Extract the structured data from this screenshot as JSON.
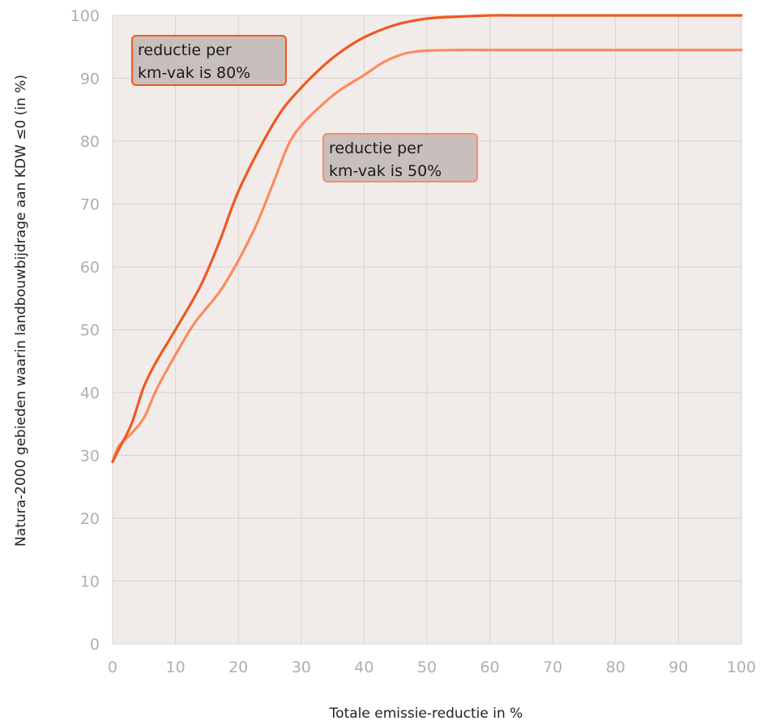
{
  "chart_data": {
    "type": "line",
    "title": "",
    "xlabel": "Totale emissie-reductie in %",
    "ylabel": "Natura-2000 gebieden waarin landbouwbijdrage aan KDW ≤0 (in %)",
    "xlim": [
      0,
      100
    ],
    "ylim": [
      0,
      100
    ],
    "x_ticks": [
      0,
      10,
      20,
      30,
      40,
      50,
      60,
      70,
      80,
      90,
      100
    ],
    "y_ticks": [
      0,
      10,
      20,
      30,
      40,
      50,
      60,
      70,
      80,
      90,
      100
    ],
    "x_tick_labels": [
      "0",
      "10",
      "20",
      "30",
      "40",
      "50",
      "60",
      "70",
      "80",
      "90",
      "100"
    ],
    "y_tick_labels": [
      "0",
      "10",
      "20",
      "30",
      "40",
      "50",
      "60",
      "70",
      "80",
      "90",
      "100"
    ],
    "grid": true,
    "legend": "none",
    "series": [
      {
        "color": "#f0581f",
        "x": [
          0,
          1,
          3,
          5,
          7,
          10,
          14,
          17,
          20,
          24,
          27,
          30,
          33,
          36,
          40,
          45,
          50,
          55,
          60,
          65,
          70,
          80,
          90,
          100
        ],
        "y": [
          29,
          31,
          35,
          41,
          45,
          50,
          57,
          64,
          72,
          80,
          85,
          88.5,
          91.5,
          94,
          96.5,
          98.5,
          99.5,
          99.8,
          100,
          100,
          100,
          100,
          100,
          100
        ]
      },
      {
        "color": "#fc8b5e",
        "x": [
          0,
          1,
          3,
          5,
          7,
          10,
          13,
          17,
          20,
          23,
          26,
          28,
          30,
          33,
          36,
          40,
          43,
          46,
          48,
          50,
          55,
          60,
          70,
          80,
          90,
          100
        ],
        "y": [
          29,
          31.5,
          33.5,
          36,
          40.5,
          46,
          51,
          56,
          61,
          67,
          74.5,
          79.5,
          82.5,
          85.5,
          88,
          90.5,
          92.5,
          93.8,
          94.2,
          94.4,
          94.5,
          94.5,
          94.5,
          94.5,
          94.5,
          94.5
        ]
      }
    ],
    "annotations": [
      {
        "text_lines": [
          "reductie per",
          "km-vak is 80%"
        ],
        "border_color": "#f0581f"
      },
      {
        "text_lines": [
          "reductie per",
          "km-vak is 50%"
        ],
        "border_color": "#fc8b5e"
      }
    ],
    "colors": {
      "plot_background": "#f1ecea",
      "grid": "#d9d2cf",
      "annotation_fill": "#c8bfbd"
    }
  }
}
